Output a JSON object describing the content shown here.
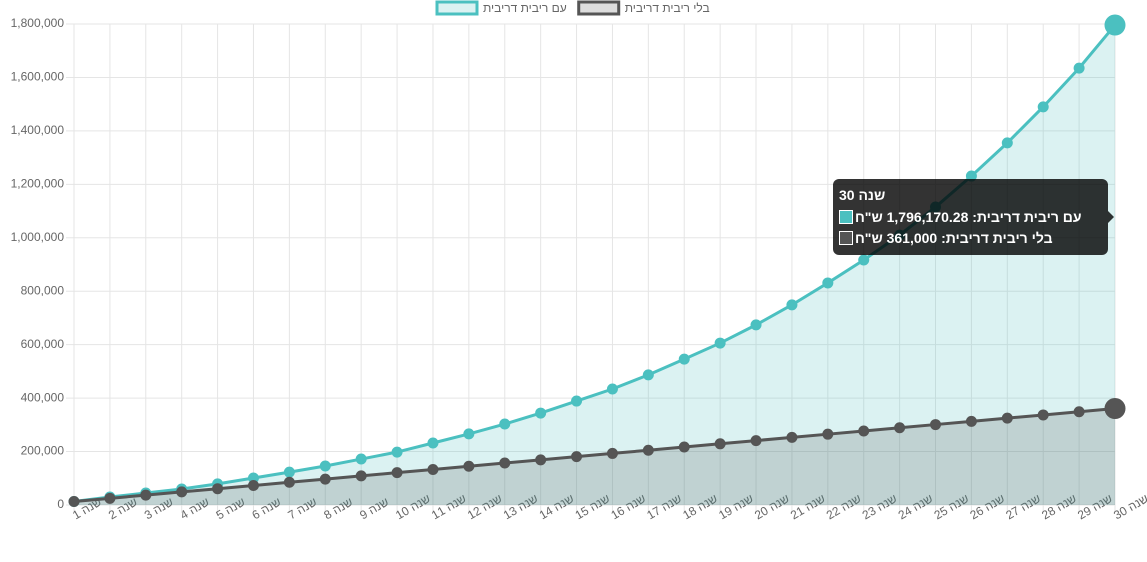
{
  "chart_data": {
    "type": "line",
    "categories": [
      "שנה 1",
      "שנה 2",
      "שנה 3",
      "שנה 4",
      "שנה 5",
      "שנה 6",
      "שנה 7",
      "שנה 8",
      "שנה 9",
      "שנה 10",
      "שנה 11",
      "שנה 12",
      "שנה 13",
      "שנה 14",
      "שנה 15",
      "שנה 16",
      "שנה 17",
      "שנה 18",
      "שנה 19",
      "שנה 20",
      "שנה 21",
      "שנה 22",
      "שנה 23",
      "שנה 24",
      "שנה 25",
      "שנה 26",
      "שנה 27",
      "שנה 28",
      "שנה 29",
      "שנה 30"
    ],
    "series": [
      {
        "name": "עם ריבית דריבית",
        "color": "#4bc0c0",
        "values": [
          13000,
          30000,
          45000,
          60000,
          79000,
          101000,
          123000,
          146000,
          172000,
          198000,
          232000,
          266000,
          303000,
          344000,
          389000,
          434000,
          487000,
          546000,
          606000,
          674000,
          749000,
          831000,
          917000,
          1010000,
          1115000,
          1231000,
          1355000,
          1490000,
          1635000,
          1796170.28
        ]
      },
      {
        "name": "בלי ריבית דריבית",
        "color": "#555555",
        "values": [
          13000,
          25000,
          37000,
          49000,
          61000,
          73000,
          85000,
          97000,
          109000,
          121000,
          133000,
          145000,
          157000,
          169000,
          181000,
          193000,
          205000,
          217000,
          229000,
          241000,
          253000,
          265000,
          277000,
          289000,
          301000,
          313000,
          325000,
          337000,
          349000,
          361000
        ]
      }
    ],
    "ylim": [
      0,
      1800000
    ],
    "yticks": [
      0,
      {
        "value": 200000,
        "label": "200,000"
      },
      {
        "value": 400000,
        "label": "400,000"
      },
      {
        "value": 600000,
        "label": "600,000"
      },
      {
        "value": 800000,
        "label": "800,000"
      },
      {
        "value": 1000000,
        "label": "1,000,000"
      },
      {
        "value": 1200000,
        "label": "1,200,000"
      },
      {
        "value": 1400000,
        "label": "1,400,000"
      },
      {
        "value": 1600000,
        "label": "1,600,000"
      },
      {
        "value": 1800000,
        "label": "1,800,000"
      }
    ],
    "grid": true,
    "legend": "top",
    "tooltip": {
      "title": "שנה 30",
      "items": [
        "עם ריבית דריבית: 1,796,170.28 ש\"ח",
        "בלי ריבית דריבית: 361,000 ש\"ח"
      ]
    }
  }
}
